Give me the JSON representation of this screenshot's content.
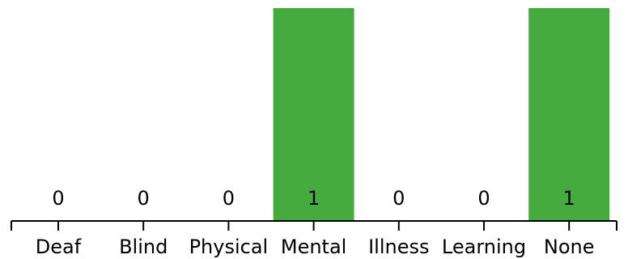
{
  "chart_data": {
    "type": "bar",
    "categories": [
      "Deaf",
      "Blind",
      "Physical",
      "Mental",
      "Illness",
      "Learning",
      "None"
    ],
    "values": [
      0,
      0,
      0,
      1,
      0,
      0,
      1
    ],
    "data_labels": [
      "0",
      "0",
      "0",
      "1",
      "0",
      "0",
      "1"
    ],
    "ylim": [
      0,
      1
    ],
    "bar_color": "#45ab3e",
    "grid": false,
    "legend": "none",
    "title": "",
    "xlabel": "",
    "ylabel": ""
  }
}
